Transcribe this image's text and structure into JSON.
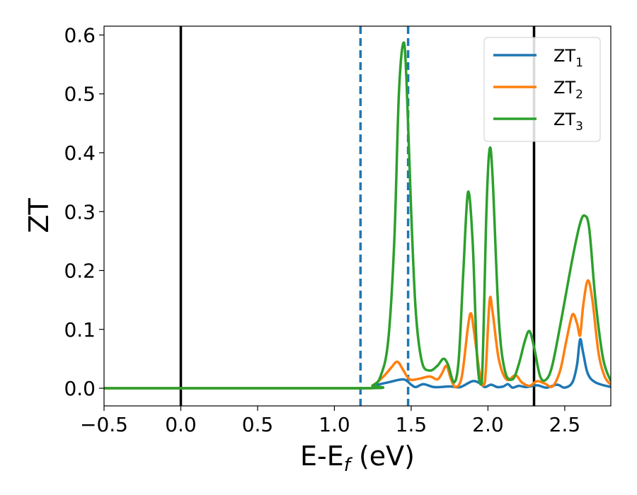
{
  "chart_data": {
    "type": "line",
    "xlabel": "E-E",
    "xlabel_sub": "f",
    "xlabel_unit": " (eV)",
    "ylabel": "ZT",
    "xlim": [
      -0.5,
      2.8
    ],
    "ylim": [
      -0.03,
      0.615
    ],
    "xticks": [
      -0.5,
      0.0,
      0.5,
      1.0,
      1.5,
      2.0,
      2.5
    ],
    "xtick_labels": [
      "−0.5",
      "0.0",
      "0.5",
      "1.0",
      "1.5",
      "2.0",
      "2.5"
    ],
    "yticks": [
      0.0,
      0.1,
      0.2,
      0.3,
      0.4,
      0.5,
      0.6
    ],
    "ytick_labels": [
      "0.0",
      "0.1",
      "0.2",
      "0.3",
      "0.4",
      "0.5",
      "0.6"
    ],
    "vlines": [
      {
        "x": 0.0,
        "style": "solid",
        "color": "#000000"
      },
      {
        "x": 1.17,
        "style": "dashed",
        "color": "#1f77b4"
      },
      {
        "x": 1.48,
        "style": "dashed",
        "color": "#1f77b4"
      },
      {
        "x": 2.3,
        "style": "solid",
        "color": "#000000"
      }
    ],
    "legend_position": "top-right",
    "series": [
      {
        "name": "ZT",
        "name_sub": "1",
        "color": "#1f77b4",
        "points": [
          [
            -0.5,
            0.0
          ],
          [
            1.17,
            0.0
          ],
          [
            1.25,
            0.004
          ],
          [
            1.35,
            0.01
          ],
          [
            1.45,
            0.015
          ],
          [
            1.5,
            0.006
          ],
          [
            1.53,
            0.002
          ],
          [
            1.58,
            0.007
          ],
          [
            1.65,
            0.002
          ],
          [
            1.75,
            0.003
          ],
          [
            1.82,
            0.002
          ],
          [
            1.9,
            0.012
          ],
          [
            1.95,
            0.008
          ],
          [
            1.98,
            0.002
          ],
          [
            2.02,
            0.006
          ],
          [
            2.06,
            0.002
          ],
          [
            2.1,
            0.003
          ],
          [
            2.13,
            0.007
          ],
          [
            2.16,
            0.001
          ],
          [
            2.2,
            0.004
          ],
          [
            2.25,
            0.002
          ],
          [
            2.32,
            0.005
          ],
          [
            2.38,
            0.001
          ],
          [
            2.45,
            0.006
          ],
          [
            2.5,
            0.001
          ],
          [
            2.55,
            0.01
          ],
          [
            2.58,
            0.04
          ],
          [
            2.6,
            0.083
          ],
          [
            2.62,
            0.06
          ],
          [
            2.65,
            0.025
          ],
          [
            2.7,
            0.01
          ],
          [
            2.8,
            0.002
          ]
        ]
      },
      {
        "name": "ZT",
        "name_sub": "2",
        "color": "#ff7f0e",
        "points": [
          [
            -0.5,
            0.0
          ],
          [
            1.17,
            0.0
          ],
          [
            1.25,
            0.005
          ],
          [
            1.32,
            0.02
          ],
          [
            1.37,
            0.035
          ],
          [
            1.41,
            0.045
          ],
          [
            1.45,
            0.03
          ],
          [
            1.49,
            0.015
          ],
          [
            1.55,
            0.016
          ],
          [
            1.62,
            0.02
          ],
          [
            1.67,
            0.015
          ],
          [
            1.7,
            0.025
          ],
          [
            1.73,
            0.038
          ],
          [
            1.76,
            0.015
          ],
          [
            1.79,
            0.002
          ],
          [
            1.83,
            0.02
          ],
          [
            1.87,
            0.105
          ],
          [
            1.89,
            0.127
          ],
          [
            1.91,
            0.095
          ],
          [
            1.95,
            0.02
          ],
          [
            1.98,
            0.01
          ],
          [
            2.01,
            0.147
          ],
          [
            2.03,
            0.13
          ],
          [
            2.07,
            0.05
          ],
          [
            2.12,
            0.015
          ],
          [
            2.18,
            0.022
          ],
          [
            2.22,
            0.01
          ],
          [
            2.27,
            0.004
          ],
          [
            2.32,
            0.012
          ],
          [
            2.37,
            0.008
          ],
          [
            2.42,
            0.003
          ],
          [
            2.47,
            0.03
          ],
          [
            2.51,
            0.08
          ],
          [
            2.55,
            0.125
          ],
          [
            2.58,
            0.11
          ],
          [
            2.6,
            0.09
          ],
          [
            2.62,
            0.14
          ],
          [
            2.65,
            0.183
          ],
          [
            2.68,
            0.15
          ],
          [
            2.72,
            0.06
          ],
          [
            2.76,
            0.02
          ],
          [
            2.8,
            0.006
          ]
        ]
      },
      {
        "name": "ZT",
        "name_sub": "3",
        "color": "#2ca02c",
        "points": [
          [
            -0.5,
            0.0
          ],
          [
            1.17,
            0.0
          ],
          [
            1.25,
            0.005
          ],
          [
            1.3,
            0.02
          ],
          [
            1.35,
            0.08
          ],
          [
            1.39,
            0.25
          ],
          [
            1.42,
            0.5
          ],
          [
            1.45,
            0.587
          ],
          [
            1.47,
            0.52
          ],
          [
            1.5,
            0.3
          ],
          [
            1.53,
            0.13
          ],
          [
            1.57,
            0.045
          ],
          [
            1.62,
            0.03
          ],
          [
            1.67,
            0.038
          ],
          [
            1.71,
            0.05
          ],
          [
            1.74,
            0.04
          ],
          [
            1.78,
            0.01
          ],
          [
            1.81,
            0.05
          ],
          [
            1.84,
            0.2
          ],
          [
            1.87,
            0.333
          ],
          [
            1.9,
            0.25
          ],
          [
            1.93,
            0.05
          ],
          [
            1.96,
            0.01
          ],
          [
            1.99,
            0.3
          ],
          [
            2.01,
            0.405
          ],
          [
            2.03,
            0.36
          ],
          [
            2.07,
            0.12
          ],
          [
            2.11,
            0.03
          ],
          [
            2.16,
            0.015
          ],
          [
            2.2,
            0.04
          ],
          [
            2.24,
            0.08
          ],
          [
            2.27,
            0.097
          ],
          [
            2.3,
            0.07
          ],
          [
            2.34,
            0.02
          ],
          [
            2.38,
            0.015
          ],
          [
            2.42,
            0.04
          ],
          [
            2.48,
            0.12
          ],
          [
            2.55,
            0.22
          ],
          [
            2.6,
            0.28
          ],
          [
            2.63,
            0.293
          ],
          [
            2.66,
            0.27
          ],
          [
            2.7,
            0.15
          ],
          [
            2.75,
            0.05
          ],
          [
            2.8,
            0.012
          ]
        ]
      }
    ]
  }
}
